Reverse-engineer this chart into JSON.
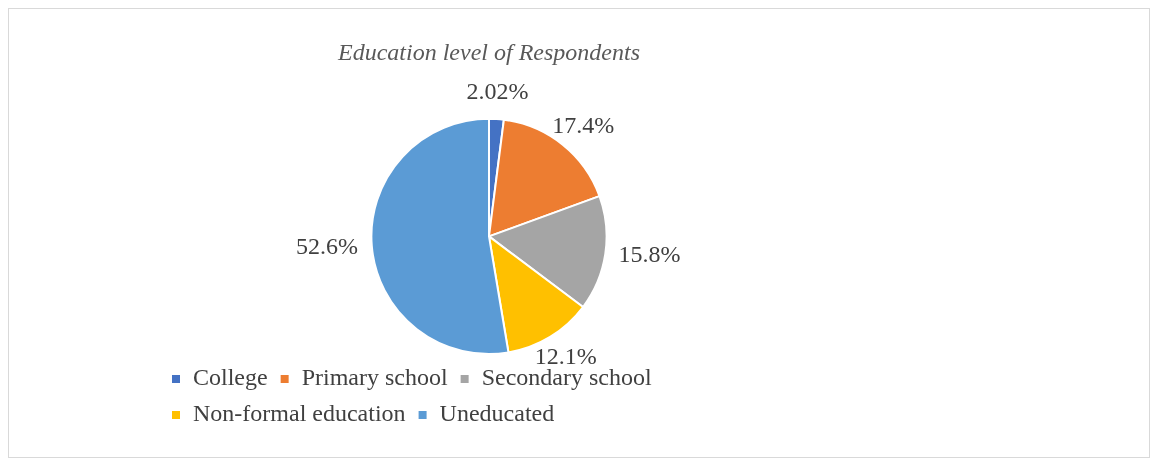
{
  "chart_data": {
    "type": "pie",
    "title": "Education level of Respondents",
    "categories": [
      "College",
      "Primary school",
      "Secondary school",
      "Non-formal education",
      "Uneducated"
    ],
    "values": [
      2.02,
      17.4,
      15.8,
      12.1,
      52.6
    ],
    "value_labels": [
      "2.02%",
      "17.4%",
      "15.8%",
      "12.1%",
      "52.6%"
    ],
    "colors": [
      "#4472c4",
      "#ed7d31",
      "#a5a5a5",
      "#ffc000",
      "#5b9bd5"
    ],
    "legend": "bottom"
  }
}
